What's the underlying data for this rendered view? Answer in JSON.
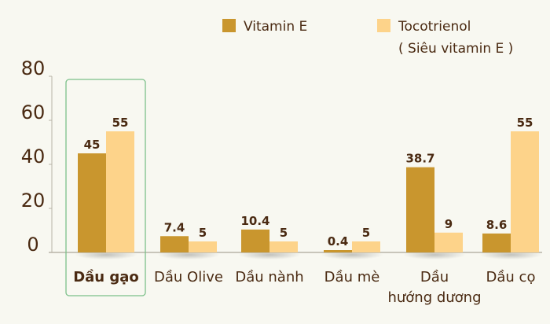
{
  "chart_data": {
    "type": "bar",
    "categories": [
      "Dầu gạo",
      "Dầu Olive",
      "Dầu nành",
      "Dầu mè",
      "Dầu\nhướng dương",
      "Dầu cọ"
    ],
    "highlighted_category": "Dầu gạo",
    "series": [
      {
        "name": "Vitamin E",
        "color": "#c9962e",
        "values": [
          45,
          7.4,
          10.4,
          0.4,
          38.7,
          8.6
        ],
        "labels": [
          "45",
          "7.4",
          "10.4",
          "0.4",
          "38.7",
          "8.6"
        ]
      },
      {
        "name": "Tocotrienol\n( Siêu vitamin E )",
        "color": "#fdd38a",
        "values": [
          55,
          5,
          5,
          5,
          9,
          55
        ],
        "labels": [
          "55",
          "5",
          "5",
          "5",
          "9",
          "55"
        ]
      }
    ],
    "yticks": [
      "0",
      "20",
      "40",
      "60",
      "80"
    ],
    "ylim": [
      0,
      80
    ],
    "grid": false,
    "legend_position": "top-right",
    "highlight_color": "#7cc08a"
  }
}
